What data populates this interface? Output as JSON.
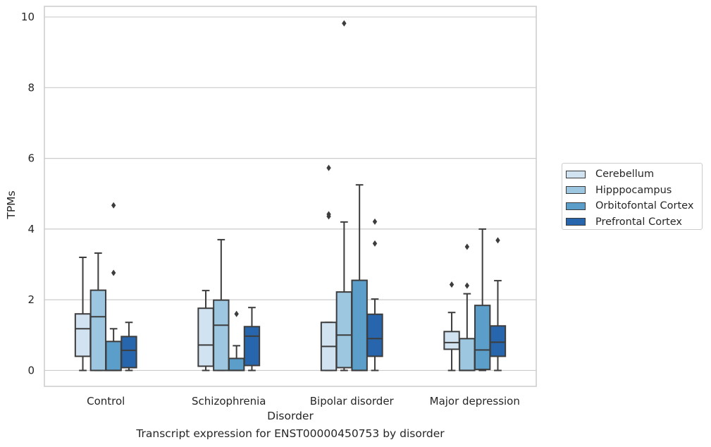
{
  "chart_data": {
    "type": "box",
    "title": "Transcript expression for ENST00000450753 by disorder",
    "xlabel": "Disorder",
    "ylabel": "TPMs",
    "ylim": [
      -0.45,
      10.3
    ],
    "yticks": [
      0,
      2,
      4,
      6,
      8,
      10
    ],
    "grid": true,
    "legend_position": "right",
    "categories": [
      "Control",
      "Schizophrenia",
      "Bipolar disorder",
      "Major depression"
    ],
    "series": [
      {
        "name": "Cerebellum",
        "color": "#d1e2f1",
        "boxes": [
          {
            "whislo": 0.0,
            "q1": 0.4,
            "med": 1.18,
            "q3": 1.6,
            "whishi": 3.2,
            "fliers": []
          },
          {
            "whislo": 0.0,
            "q1": 0.12,
            "med": 0.72,
            "q3": 1.76,
            "whishi": 2.26,
            "fliers": []
          },
          {
            "whislo": 0.0,
            "q1": 0.0,
            "med": 0.68,
            "q3": 1.36,
            "whishi": 1.36,
            "fliers": [
              5.73,
              4.42,
              4.36
            ]
          },
          {
            "whislo": 0.0,
            "q1": 0.6,
            "med": 0.79,
            "q3": 1.1,
            "whishi": 1.64,
            "fliers": [
              2.43
            ]
          }
        ]
      },
      {
        "name": "Hipppocampus",
        "color": "#9dc7e0",
        "boxes": [
          {
            "whislo": 0.0,
            "q1": 0.0,
            "med": 1.52,
            "q3": 2.27,
            "whishi": 3.32,
            "fliers": []
          },
          {
            "whislo": 0.0,
            "q1": 0.0,
            "med": 1.28,
            "q3": 1.99,
            "whishi": 3.7,
            "fliers": []
          },
          {
            "whislo": 0.0,
            "q1": 0.08,
            "med": 1.0,
            "q3": 2.22,
            "whishi": 4.2,
            "fliers": [
              9.82
            ]
          },
          {
            "whislo": 0.0,
            "q1": 0.0,
            "med": 0.0,
            "q3": 0.9,
            "whishi": 2.17,
            "fliers": [
              3.5,
              2.4
            ]
          }
        ]
      },
      {
        "name": "Orbitofontal Cortex",
        "color": "#5a9ec9",
        "boxes": [
          {
            "whislo": 0.0,
            "q1": 0.0,
            "med": 0.0,
            "q3": 0.82,
            "whishi": 1.18,
            "fliers": [
              4.67,
              2.76
            ]
          },
          {
            "whislo": 0.0,
            "q1": 0.0,
            "med": 0.0,
            "q3": 0.34,
            "whishi": 0.7,
            "fliers": [
              1.6
            ]
          },
          {
            "whislo": 0.0,
            "q1": 0.0,
            "med": 0.0,
            "q3": 2.55,
            "whishi": 5.25,
            "fliers": []
          },
          {
            "whislo": 0.0,
            "q1": 0.03,
            "med": 0.58,
            "q3": 1.84,
            "whishi": 4.0,
            "fliers": []
          }
        ]
      },
      {
        "name": "Prefrontal Cortex",
        "color": "#2766ad",
        "boxes": [
          {
            "whislo": 0.0,
            "q1": 0.08,
            "med": 0.57,
            "q3": 0.96,
            "whishi": 1.36,
            "fliers": []
          },
          {
            "whislo": 0.0,
            "q1": 0.14,
            "med": 0.97,
            "q3": 1.24,
            "whishi": 1.78,
            "fliers": []
          },
          {
            "whislo": 0.0,
            "q1": 0.4,
            "med": 0.9,
            "q3": 1.59,
            "whishi": 2.02,
            "fliers": [
              4.21,
              3.59
            ]
          },
          {
            "whislo": 0.0,
            "q1": 0.4,
            "med": 0.8,
            "q3": 1.26,
            "whishi": 2.54,
            "fliers": [
              3.68
            ]
          }
        ]
      }
    ]
  }
}
